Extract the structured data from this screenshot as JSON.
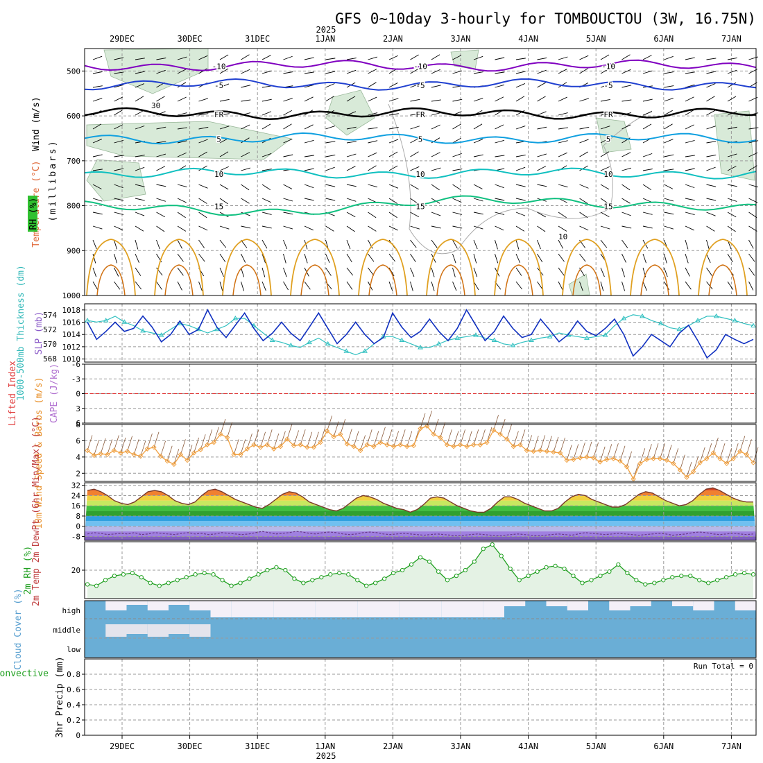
{
  "header": {
    "title": "GFS 0~10day 3-hourly for TOMBOUCTOU (3W, 16.75N)",
    "year_label": "2025"
  },
  "days": [
    "29DEC",
    "30DEC",
    "31DEC",
    "1JAN",
    "2JAN",
    "3JAN",
    "4JAN",
    "5JAN",
    "6JAN",
    "7JAN"
  ],
  "colors": {
    "wind_barb": "#000000",
    "temp_minus10": "#8000c0",
    "temp_minus5": "#2040d0",
    "temp_fr": "#000000",
    "temp_5": "#10a0e0",
    "temp_10": "#10c0c0",
    "temp_15": "#10c080",
    "temp_warm": "#e0a020",
    "rh_shade": "#d8ead8",
    "slp": "#1030c0",
    "thickness": "#30c0c0",
    "zero_line": "#e03030",
    "wind10m": "#f0a040",
    "rh2m": "#20a020",
    "cloud": "#6aaed6"
  },
  "chart_data": [
    {
      "panel": "upper-air",
      "type": "contour",
      "ylabel_parts": [
        "Wind (m/s)",
        "Temperature (°C)",
        "(millibars)",
        "RH (%)"
      ],
      "y_ticks": [
        500,
        600,
        700,
        800,
        900,
        1000
      ],
      "ylim": [
        450,
        1000
      ],
      "isotherms": [
        {
          "label": "-10",
          "p": 488
        },
        {
          "label": "-5",
          "p": 530
        },
        {
          "label": "FR",
          "p": 595
        },
        {
          "label": "5",
          "p": 650
        },
        {
          "label": "10",
          "p": 728
        },
        {
          "label": "15",
          "p": 800
        }
      ],
      "rh_labels": [
        "30",
        "10"
      ]
    },
    {
      "panel": "slp-thickness",
      "type": "line",
      "ylabel": "SLP (mb)",
      "y2label": "1000-500mb Thickness (dm)",
      "y_ticks": [
        1010,
        1012,
        1014,
        1016,
        1018
      ],
      "ylim": [
        1009.5,
        1019
      ],
      "y2_ticks": [
        568,
        570,
        572,
        574
      ],
      "y2lim": [
        567.5,
        575.5
      ],
      "series": [
        {
          "name": "SLP",
          "values": [
            1016,
            1013.2,
            1014.5,
            1016,
            1014.5,
            1015,
            1017,
            1015.2,
            1012.8,
            1014,
            1016.2,
            1014,
            1014.8,
            1018,
            1015.2,
            1013.5,
            1015.5,
            1017.5,
            1015,
            1013,
            1014.2,
            1016,
            1014.2,
            1013,
            1015.2,
            1017.5,
            1015,
            1012.5,
            1014,
            1016,
            1014,
            1012.5,
            1013.5,
            1017.5,
            1015.2,
            1013.5,
            1014.5,
            1016.5,
            1014.5,
            1013,
            1015,
            1018,
            1015.5,
            1013,
            1014.5,
            1017,
            1015,
            1013.5,
            1014,
            1016.5,
            1014.7,
            1012.8,
            1014,
            1016.2,
            1014.5,
            1013.8,
            1015,
            1016.5,
            1014,
            1010.5,
            1012,
            1014,
            1013,
            1012,
            1014.2,
            1015.5,
            1013,
            1010.2,
            1011.5,
            1014,
            1013.2,
            1012.5,
            1013.2
          ]
        },
        {
          "name": "Thickness",
          "values": [
            573.2,
            573,
            573.2,
            573.8,
            573,
            572.5,
            571.8,
            571.5,
            571.2,
            572,
            572.8,
            572.5,
            572,
            571.5,
            572,
            572.5,
            573.5,
            573.5,
            572.5,
            571.5,
            570.5,
            570.2,
            569.8,
            569.5,
            570.2,
            570.8,
            570,
            569.5,
            569,
            568.5,
            569,
            570,
            571,
            571,
            570.5,
            570,
            569.5,
            569.5,
            570,
            570.5,
            570.8,
            571,
            571.2,
            570.8,
            570.5,
            570,
            569.8,
            570.2,
            570.5,
            570.8,
            571,
            571.5,
            571.2,
            571,
            570.8,
            571,
            571.2,
            572.5,
            573.5,
            574,
            573.8,
            573.2,
            572.8,
            572.2,
            572,
            572.5,
            573.2,
            573.8,
            573.8,
            573.5,
            573.2,
            572.8,
            572.5
          ]
        }
      ]
    },
    {
      "panel": "stability",
      "type": "line",
      "ylabel": "Lifted Index",
      "y2label": "CAPE (J/kg)",
      "y_ticks": [
        -6,
        -3,
        0,
        3,
        6
      ],
      "ylim": [
        -6,
        6
      ],
      "zero_line": 0
    },
    {
      "panel": "wind10m",
      "type": "line",
      "ylabel": "10m Wind Speed & Barbs (m/s)",
      "y_ticks": [
        2,
        4,
        6,
        8
      ],
      "ylim": [
        1,
        8
      ],
      "series": [
        {
          "name": "Speed",
          "values": [
            4.8,
            4.2,
            4.4,
            4.3,
            4.8,
            4.5,
            4.7,
            4.3,
            4.1,
            5,
            5.2,
            4.1,
            3.5,
            3.1,
            4.3,
            3.6,
            4.5,
            4.9,
            5.5,
            5.8,
            6.8,
            6.4,
            4.3,
            4.3,
            5,
            5.5,
            5.2,
            5.5,
            5,
            5.3,
            6.2,
            5.4,
            5.5,
            5.2,
            5.2,
            5.8,
            7.2,
            6.5,
            6.8,
            5.6,
            5.3,
            4.8,
            5.5,
            5.3,
            5.8,
            5.5,
            5.3,
            5.5,
            5.3,
            5.4,
            7.5,
            7.8,
            6.8,
            6.4,
            5.5,
            5.3,
            5.5,
            5.3,
            5.5,
            5.5,
            5.8,
            7.3,
            6.8,
            6.2,
            5.3,
            5.5,
            4.8,
            4.7,
            4.8,
            4.7,
            4.6,
            4.5,
            3.6,
            3.7,
            3.9,
            4,
            3.9,
            3.4,
            3.7,
            3.8,
            3.5,
            2.8,
            1.3,
            3.2,
            3.7,
            3.8,
            3.8,
            3.6,
            3.2,
            2.4,
            1.5,
            2.2,
            3.3,
            3.8,
            4.5,
            3.8,
            3.2,
            3.8,
            4.7,
            4.3,
            3.3
          ]
        }
      ]
    },
    {
      "panel": "temp2m",
      "type": "area",
      "ylabel": "2m Temp 2m DewPt (6hr Min/Max) (°C)",
      "y_ticks": [
        -8,
        0,
        8,
        16,
        24,
        32
      ],
      "ylim": [
        -11,
        34
      ],
      "series": [
        {
          "name": "2m Temp",
          "values": [
            28,
            29,
            27,
            24,
            20,
            18,
            17,
            19,
            23,
            27,
            28,
            27,
            24,
            20,
            18,
            17,
            19,
            24,
            28,
            29,
            27,
            24,
            21,
            19,
            17,
            15,
            14,
            17,
            21,
            25,
            27,
            26,
            23,
            19,
            17,
            15,
            13,
            12,
            14,
            18,
            22,
            24,
            23,
            21,
            18,
            16,
            14,
            13,
            11,
            13,
            17,
            22,
            23,
            22,
            19,
            16,
            14,
            12,
            11,
            11,
            14,
            19,
            23,
            23,
            21,
            18,
            16,
            14,
            12,
            12,
            14,
            19,
            23,
            25,
            24,
            21,
            19,
            17,
            15,
            15,
            17,
            21,
            25,
            27,
            26,
            23,
            20,
            18,
            16,
            17,
            20,
            25,
            29,
            30,
            28,
            25,
            22,
            20,
            19,
            19
          ]
        },
        {
          "name": "2m DewPt",
          "values": [
            -6,
            -5,
            -5.5,
            -6.5,
            -6,
            -5.5,
            -6,
            -5,
            -6.5,
            -6,
            -5,
            -5.5,
            -6,
            -6.5,
            -5.5,
            -5,
            -6,
            -5.5,
            -6.5,
            -6,
            -5,
            -5.5,
            -6,
            -6.5,
            -6,
            -5,
            -4,
            -5,
            -6,
            -5.5,
            -5,
            -4,
            -4.5,
            -5.5,
            -6,
            -5,
            -4.5,
            -5,
            -6,
            -6.5,
            -6,
            -5,
            -4.5,
            -5,
            -6,
            -6.5,
            -6,
            -5.5,
            -6,
            -6.5,
            -7,
            -6.5,
            -6,
            -6.5,
            -7,
            -7.5,
            -7,
            -6.5,
            -6,
            -6.5,
            -7,
            -7.5,
            -7,
            -6.5,
            -6,
            -6.5,
            -7,
            -7.5,
            -7,
            -6.5,
            -6,
            -6.5,
            -7,
            -6,
            -5,
            -5.5,
            -6,
            -6.5,
            -6,
            -5.5,
            -6,
            -6.5,
            -7,
            -6.5,
            -6,
            -5.5,
            -6,
            -7,
            -6.5,
            -6,
            -5,
            -4.5,
            -5,
            -6,
            -6.5,
            -6,
            -5.5,
            -6,
            -6.5,
            -6
          ]
        }
      ]
    },
    {
      "panel": "rh2m",
      "type": "line",
      "ylabel": "2m RH (%)",
      "y_ticks": [
        20
      ],
      "ylim": [
        0,
        40
      ],
      "series": [
        {
          "name": "2m RH",
          "values": [
            10,
            9,
            13,
            16,
            17,
            18,
            15,
            11,
            9,
            11,
            13,
            15,
            17,
            18,
            17,
            13,
            9,
            11,
            14,
            17,
            20,
            22,
            20,
            14,
            11,
            13,
            15,
            17,
            18,
            17,
            13,
            9,
            11,
            14,
            18,
            20,
            24,
            29,
            26,
            19,
            13,
            16,
            20,
            26,
            35,
            38,
            30,
            21,
            13,
            16,
            19,
            22,
            23,
            21,
            16,
            11,
            13,
            16,
            19,
            24,
            18,
            13,
            10,
            11,
            13,
            15,
            16,
            16,
            13,
            11,
            13,
            15,
            17,
            18,
            17
          ]
        }
      ]
    },
    {
      "panel": "cloud",
      "type": "bar",
      "ylabel": "Cloud Cover (%)",
      "levels": [
        "high",
        "middle",
        "low"
      ]
    },
    {
      "panel": "precip",
      "type": "bar",
      "ylabel": "3hr Precip (mm)",
      "y2label": "Total / Rain Convective",
      "y_ticks": [
        0,
        0.2,
        0.4,
        0.6,
        0.8
      ],
      "ylim": [
        0,
        1
      ],
      "run_total": "Run Total = 0"
    }
  ]
}
